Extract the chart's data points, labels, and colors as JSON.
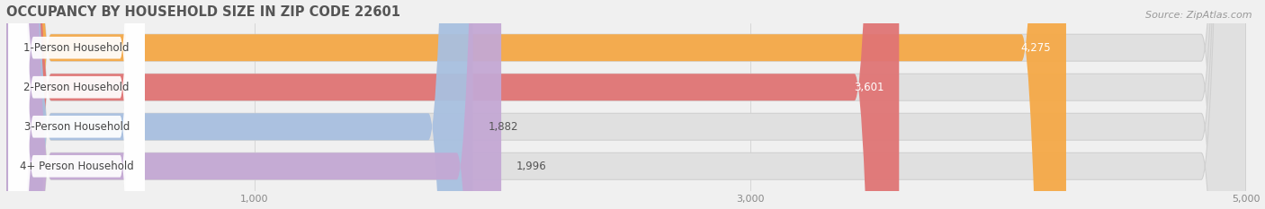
{
  "title": "OCCUPANCY BY HOUSEHOLD SIZE IN ZIP CODE 22601",
  "source": "Source: ZipAtlas.com",
  "categories": [
    "1-Person Household",
    "2-Person Household",
    "3-Person Household",
    "4+ Person Household"
  ],
  "values": [
    4275,
    3601,
    1882,
    1996
  ],
  "bar_colors": [
    "#F5A947",
    "#E07575",
    "#A8C0E0",
    "#C4A8D4"
  ],
  "xlim": [
    0,
    5000
  ],
  "value_label_fontsize": 8.5,
  "category_label_fontsize": 8.5,
  "title_fontsize": 10.5,
  "source_fontsize": 8,
  "background_color": "#f0f0f0",
  "track_color": "#e0e0e0",
  "bar_height": 0.68,
  "bar_spacing": 1.0
}
